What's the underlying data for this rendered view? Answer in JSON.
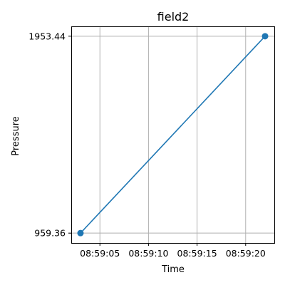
{
  "chart_data": {
    "type": "line",
    "title": "field2",
    "xlabel": "Time",
    "ylabel": "Pressure",
    "x_type": "time",
    "x": [
      "08:59:03",
      "08:59:22"
    ],
    "series": [
      {
        "values": [
          959.36,
          1953.44
        ],
        "color": "#1f77b4",
        "marker": "circle"
      }
    ],
    "xticks": [
      "08:59:05",
      "08:59:10",
      "08:59:15",
      "08:59:20"
    ],
    "yticks": [
      959.36,
      1953.44
    ],
    "xlim": [
      "08:59:02.05",
      "08:59:22.95"
    ],
    "ylim": [
      909.656,
      2003.144
    ],
    "grid": true
  }
}
